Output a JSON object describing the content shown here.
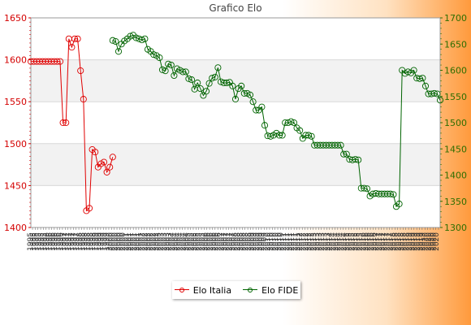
{
  "chart_data": {
    "type": "line",
    "title": "Grafico Elo",
    "left_axis": {
      "ylim": [
        1400,
        1650
      ],
      "ticks": [
        "1400",
        "1450",
        "1500",
        "1550",
        "1600",
        "1650"
      ],
      "color": "#d40000"
    },
    "right_axis": {
      "ylim": [
        1300,
        1700
      ],
      "ticks": [
        "1300",
        "1350",
        "1400",
        "1450",
        "1500",
        "1550",
        "1600",
        "1650",
        "1700"
      ],
      "color": "#2d6e00"
    },
    "grid": true,
    "legend_position": "bottom",
    "series": [
      {
        "name": "Elo Italia",
        "axis": "left",
        "color": "#e00000",
        "points": [
          [
            0,
            1598
          ],
          [
            1,
            1598
          ],
          [
            2,
            1598
          ],
          [
            3,
            1598
          ],
          [
            4,
            1598
          ],
          [
            5,
            1598
          ],
          [
            6,
            1598
          ],
          [
            7,
            1598
          ],
          [
            8,
            1598
          ],
          [
            9,
            1598
          ],
          [
            10,
            1598
          ],
          [
            11,
            1525
          ],
          [
            12,
            1525
          ],
          [
            13,
            1625
          ],
          [
            14,
            1615
          ],
          [
            15,
            1625
          ],
          [
            16,
            1625
          ],
          [
            17,
            1587
          ],
          [
            18,
            1553
          ],
          [
            19,
            1420
          ],
          [
            20,
            1423
          ],
          [
            21,
            1493
          ],
          [
            22,
            1490
          ],
          [
            23,
            1472
          ],
          [
            24,
            1476
          ],
          [
            25,
            1478
          ],
          [
            26,
            1466
          ],
          [
            27,
            1472
          ],
          [
            28,
            1484
          ]
        ]
      },
      {
        "name": "Elo FIDE",
        "axis": "right",
        "color": "#006400",
        "points": [
          [
            28,
            1657
          ],
          [
            29,
            1655
          ],
          [
            30,
            1636
          ],
          [
            31,
            1650
          ],
          [
            32,
            1656
          ],
          [
            33,
            1660
          ],
          [
            34,
            1665
          ],
          [
            35,
            1667
          ],
          [
            36,
            1662
          ],
          [
            37,
            1660
          ],
          [
            38,
            1658
          ],
          [
            39,
            1660
          ],
          [
            40,
            1640
          ],
          [
            41,
            1636
          ],
          [
            42,
            1630
          ],
          [
            43,
            1628
          ],
          [
            44,
            1624
          ],
          [
            45,
            1601
          ],
          [
            46,
            1599
          ],
          [
            47,
            1612
          ],
          [
            48,
            1610
          ],
          [
            49,
            1590
          ],
          [
            50,
            1603
          ],
          [
            51,
            1600
          ],
          [
            52,
            1597
          ],
          [
            53,
            1597
          ],
          [
            54,
            1584
          ],
          [
            55,
            1582
          ],
          [
            56,
            1564
          ],
          [
            57,
            1576
          ],
          [
            58,
            1565
          ],
          [
            59,
            1552
          ],
          [
            60,
            1560
          ],
          [
            61,
            1575
          ],
          [
            62,
            1585
          ],
          [
            63,
            1587
          ],
          [
            64,
            1605
          ],
          [
            65,
            1578
          ],
          [
            66,
            1576
          ],
          [
            67,
            1576
          ],
          [
            68,
            1577
          ],
          [
            69,
            1570
          ],
          [
            70,
            1545
          ],
          [
            71,
            1565
          ],
          [
            72,
            1570
          ],
          [
            73,
            1556
          ],
          [
            74,
            1556
          ],
          [
            75,
            1553
          ],
          [
            76,
            1540
          ],
          [
            77,
            1524
          ],
          [
            78,
            1524
          ],
          [
            79,
            1530
          ],
          [
            80,
            1495
          ],
          [
            81,
            1475
          ],
          [
            82,
            1474
          ],
          [
            83,
            1476
          ],
          [
            84,
            1480
          ],
          [
            85,
            1476
          ],
          [
            86,
            1476
          ],
          [
            87,
            1500
          ],
          [
            88,
            1500
          ],
          [
            89,
            1502
          ],
          [
            90,
            1500
          ],
          [
            91,
            1490
          ],
          [
            92,
            1485
          ],
          [
            93,
            1470
          ],
          [
            94,
            1476
          ],
          [
            95,
            1476
          ],
          [
            96,
            1474
          ],
          [
            97,
            1457
          ],
          [
            98,
            1457
          ],
          [
            99,
            1457
          ],
          [
            100,
            1457
          ],
          [
            101,
            1457
          ],
          [
            102,
            1457
          ],
          [
            103,
            1457
          ],
          [
            104,
            1457
          ],
          [
            105,
            1457
          ],
          [
            106,
            1457
          ],
          [
            107,
            1440
          ],
          [
            108,
            1440
          ],
          [
            109,
            1430
          ],
          [
            110,
            1429
          ],
          [
            111,
            1430
          ],
          [
            112,
            1429
          ],
          [
            113,
            1375
          ],
          [
            114,
            1375
          ],
          [
            115,
            1374
          ],
          [
            116,
            1360
          ],
          [
            117,
            1364
          ],
          [
            118,
            1365
          ],
          [
            119,
            1364
          ],
          [
            120,
            1364
          ],
          [
            121,
            1364
          ],
          [
            122,
            1364
          ],
          [
            123,
            1364
          ],
          [
            124,
            1363
          ],
          [
            125,
            1340
          ],
          [
            126,
            1345
          ],
          [
            127,
            1600
          ],
          [
            128,
            1594
          ],
          [
            129,
            1597
          ],
          [
            130,
            1595
          ],
          [
            131,
            1600
          ],
          [
            132,
            1585
          ],
          [
            133,
            1584
          ],
          [
            134,
            1585
          ],
          [
            135,
            1570
          ],
          [
            136,
            1555
          ],
          [
            137,
            1555
          ],
          [
            138,
            1556
          ],
          [
            139,
            1555
          ],
          [
            140,
            1543
          ]
        ]
      }
    ],
    "x_tick_labels": [
      "1995",
      "1996",
      "1997",
      "1998",
      "1999",
      "2000",
      "2001",
      "2002",
      "2003",
      "2004",
      "2005",
      "2006",
      "2007",
      "2008",
      "2009",
      "2010",
      "2011",
      "2012",
      "2013",
      "2014",
      "2015",
      "2016",
      "2017",
      "2018",
      "2019",
      "2020"
    ]
  }
}
